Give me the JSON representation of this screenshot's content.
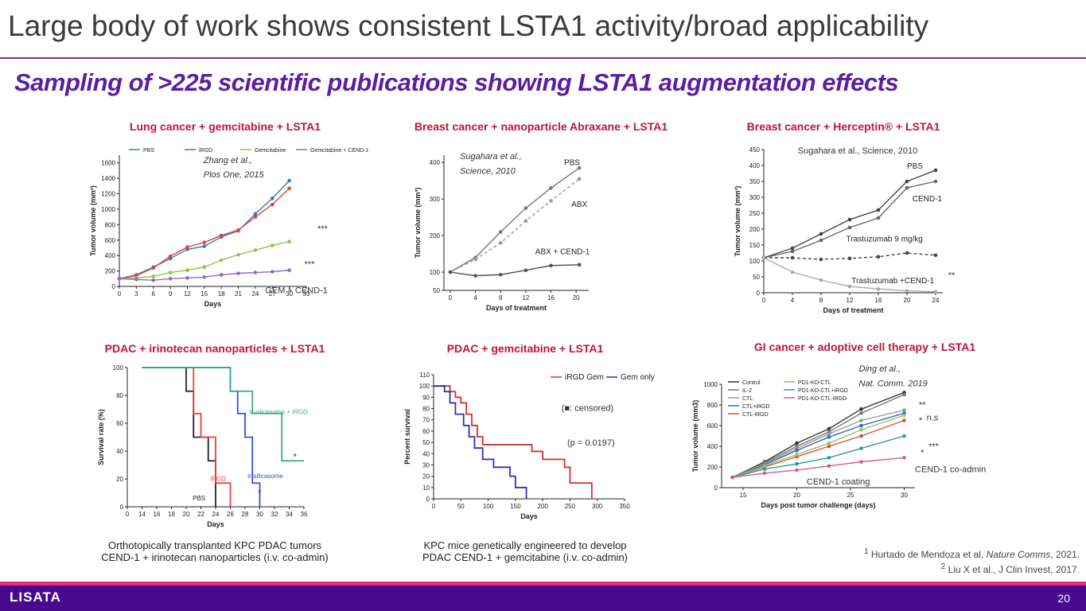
{
  "header": {
    "title": "Large body of work shows consistent LSTA1 activity/broad applicability",
    "subtitle": "Sampling of >225 scientific publications showing LSTA1 augmentation effects"
  },
  "chart_data": [
    {
      "type": "line",
      "title": "Lung cancer + gemcitabine + LSTA1",
      "x_label": "Days",
      "y_label": "Tumor volume (mm³)",
      "x": [
        0,
        3,
        6,
        9,
        12,
        15,
        18,
        21,
        24,
        27,
        30
      ],
      "xlim": [
        0,
        33
      ],
      "xticks": [
        0,
        3,
        6,
        9,
        12,
        15,
        18,
        21,
        24,
        27,
        30,
        33
      ],
      "ylim": [
        0,
        1700
      ],
      "yticks": [
        0,
        200,
        400,
        600,
        800,
        1000,
        1200,
        1400,
        1600
      ],
      "legend": true,
      "series": [
        {
          "name": "PBS",
          "color": "#3a78c3",
          "values": [
            100,
            150,
            250,
            360,
            480,
            520,
            640,
            720,
            940,
            1140,
            1370
          ]
        },
        {
          "name": "iRGD",
          "color": "#d9453a",
          "values": [
            100,
            140,
            240,
            390,
            510,
            570,
            660,
            730,
            900,
            1060,
            1270
          ]
        },
        {
          "name": "Gemcitabine",
          "color": "#8cc63f",
          "values": [
            100,
            110,
            130,
            180,
            210,
            250,
            340,
            410,
            470,
            530,
            580
          ]
        },
        {
          "name": "Gemcitabine + CEND-1",
          "color": "#8e6ac8",
          "values": [
            100,
            90,
            80,
            100,
            110,
            120,
            150,
            170,
            180,
            190,
            210
          ]
        }
      ],
      "annotations": [
        "Zhang et al.,",
        "Plos One, 2015",
        "GEM + CEND-1",
        "***",
        "***"
      ]
    },
    {
      "type": "line",
      "title": "Breast cancer + nanoparticle Abraxane + LSTA1",
      "x_label": "Days of treatment",
      "y_label": "Tumor volume (mm³)",
      "x": [
        0,
        4,
        8,
        12,
        16,
        20.5
      ],
      "xlim": [
        -1,
        22
      ],
      "xticks": [
        0,
        4,
        8,
        12,
        16,
        20
      ],
      "ylim": [
        50,
        420
      ],
      "yticks": [
        50,
        100,
        200,
        300,
        400
      ],
      "legend": false,
      "series": [
        {
          "name": "PBS",
          "color": "#777777",
          "values": [
            100,
            140,
            210,
            275,
            330,
            385
          ]
        },
        {
          "name": "ABX",
          "color": "#999999",
          "dashed": true,
          "values": [
            100,
            135,
            180,
            240,
            295,
            355
          ]
        },
        {
          "name": "ABX + CEND-1",
          "color": "#555555",
          "values": [
            100,
            90,
            93,
            105,
            118,
            120
          ]
        }
      ],
      "annotations": [
        "Sugahara et al.,",
        "Science, 2010"
      ]
    },
    {
      "type": "line",
      "title": "Breast cancer + Herceptin® + LSTA1",
      "x_label": "Days of treatment",
      "y_label": "Tumor volume (mm³)",
      "x": [
        0,
        4,
        8,
        12,
        16,
        20,
        24
      ],
      "xlim": [
        0,
        25
      ],
      "xticks": [
        0,
        4,
        8,
        12,
        16,
        20,
        24
      ],
      "ylim": [
        0,
        450
      ],
      "yticks": [
        0,
        50,
        100,
        150,
        200,
        250,
        300,
        350,
        400,
        450
      ],
      "legend": false,
      "series": [
        {
          "name": "PBS",
          "color": "#444444",
          "values": [
            110,
            140,
            185,
            230,
            260,
            350,
            385
          ]
        },
        {
          "name": "CEND-1",
          "color": "#666666",
          "values": [
            110,
            130,
            165,
            205,
            235,
            330,
            350
          ]
        },
        {
          "name": "Trastuzumab 9 mg/kg",
          "color": "#444444",
          "dashed": true,
          "values": [
            110,
            110,
            105,
            108,
            113,
            125,
            118
          ]
        },
        {
          "name": "Trastuzumab +CEND-1",
          "color": "#aaaaaa",
          "values": [
            110,
            65,
            40,
            20,
            12,
            6,
            3
          ]
        }
      ],
      "annotations": [
        "Sugahara et al., Science, 2010",
        "**"
      ]
    },
    {
      "type": "step",
      "title": "PDAC + irinotecan nanoparticles + LSTA1",
      "x_label": "Days",
      "y_label": "Survival rate (%)",
      "xlim": [
        12,
        36
      ],
      "xticks": [
        {
          "value": 12,
          "label": "0"
        },
        14,
        16,
        18,
        20,
        22,
        24,
        26,
        28,
        30,
        32,
        34,
        36
      ],
      "ylim": [
        0,
        100
      ],
      "yticks": [
        0,
        20,
        40,
        60,
        80,
        100
      ],
      "legend": false,
      "series": [
        {
          "name": "PBS",
          "color": "#222222",
          "x": [
            14,
            20,
            21,
            23,
            24
          ],
          "values": [
            100,
            83,
            50,
            33,
            0
          ]
        },
        {
          "name": "iRGD",
          "color": "#e8413a",
          "x": [
            14,
            21,
            22,
            24,
            26
          ],
          "values": [
            100,
            67,
            50,
            17,
            0
          ]
        },
        {
          "name": "Ir-silicasome",
          "color": "#3a4fd0",
          "x": [
            14,
            26,
            27,
            28,
            29,
            30
          ],
          "values": [
            100,
            83,
            67,
            50,
            17,
            0
          ]
        },
        {
          "name": "Ir-silicasome + iRGD",
          "color": "#3aa88e",
          "x": [
            14,
            26,
            29,
            33,
            36
          ],
          "values": [
            100,
            83,
            67,
            33,
            33
          ]
        }
      ],
      "annotations": [
        "*",
        "*"
      ]
    },
    {
      "type": "step",
      "title": "PDAC + gemcitabine + LSTA1",
      "x_label": "Days",
      "y_label": "Percent survival",
      "xlim": [
        0,
        350
      ],
      "xticks": [
        0,
        50,
        100,
        150,
        200,
        250,
        300,
        350
      ],
      "ylim": [
        0,
        110
      ],
      "yticks": [
        0,
        10,
        20,
        30,
        40,
        50,
        60,
        70,
        80,
        90,
        100,
        110
      ],
      "legend": true,
      "series": [
        {
          "name": "iRGD Gem",
          "color": "#d0312d",
          "x": [
            0,
            30,
            40,
            50,
            60,
            70,
            80,
            90,
            180,
            200,
            240,
            250,
            290
          ],
          "values": [
            100,
            95,
            90,
            85,
            75,
            65,
            55,
            48,
            42,
            35,
            28,
            14,
            0
          ]
        },
        {
          "name": "Gem only",
          "color": "#2f2fb8",
          "x": [
            0,
            20,
            30,
            40,
            55,
            65,
            75,
            90,
            110,
            140,
            150,
            170
          ],
          "values": [
            100,
            95,
            85,
            75,
            65,
            55,
            45,
            35,
            28,
            20,
            10,
            0
          ]
        }
      ],
      "annotations": [
        "(■: censored)",
        "(p = 0.0197)"
      ]
    },
    {
      "type": "line",
      "title": "GI cancer + adoptive cell therapy + LSTA1",
      "x_label": "Days post tumor challenge (days)",
      "y_label": "Tumor volume (mm3)",
      "x": [
        14,
        17,
        20,
        23,
        26,
        30
      ],
      "xlim": [
        13,
        31
      ],
      "xticks": [
        15,
        20,
        25,
        30
      ],
      "ylim": [
        0,
        1000
      ],
      "yticks": [
        0,
        200,
        400,
        600,
        800,
        1000
      ],
      "legend": true,
      "series": [
        {
          "name": "Control",
          "color": "#333333",
          "values": [
            100,
            250,
            430,
            570,
            760,
            920
          ]
        },
        {
          "name": "IL-2",
          "color": "#777777",
          "values": [
            100,
            240,
            400,
            540,
            720,
            900
          ]
        },
        {
          "name": "CTL",
          "color": "#999999",
          "values": [
            100,
            230,
            380,
            520,
            650,
            750
          ]
        },
        {
          "name": "CTL+iRGD",
          "color": "#2a6fb0",
          "values": [
            100,
            220,
            360,
            490,
            600,
            720
          ]
        },
        {
          "name": "CTL-iRGD",
          "color": "#d9523a",
          "values": [
            100,
            200,
            300,
            400,
            500,
            650
          ]
        },
        {
          "name": "PD1-KO-CTL",
          "color": "#9cbf6a",
          "values": [
            100,
            210,
            320,
            430,
            560,
            700
          ]
        },
        {
          "name": "PD1-KO-CTL+iRGD",
          "color": "#2a9a9a",
          "values": [
            100,
            180,
            230,
            290,
            380,
            500
          ]
        },
        {
          "name": "PD1-KO-CTL-iRGD",
          "color": "#d0608a",
          "values": [
            100,
            140,
            170,
            210,
            250,
            290
          ]
        }
      ],
      "annotations": [
        "Ding et al.,",
        "Nat. Comm. 2019",
        "**",
        "n.s",
        "*",
        "***",
        "*",
        "CEND-1 co-admin",
        "CEND-1 coating"
      ]
    }
  ],
  "captions": [
    [
      "Orthotopically transplanted KPC PDAC tumors",
      "CEND-1 + irinotecan nanoparticles (i.v. co-admin)"
    ],
    [
      "KPC mice genetically engineered to develop",
      "PDAC CEND-1 + gemcitabine (i.v. co-admin)"
    ]
  ],
  "footnotes": [
    {
      "marker": "1",
      "text": "Hurtado de Mendoza et al, ",
      "journal": "Nature Comms",
      "rest": ", 2021."
    },
    {
      "marker": "2",
      "text": "Liu X et al., J Clin Invest, 2017."
    }
  ],
  "footer": {
    "logo": "LISATA",
    "page": "20"
  }
}
